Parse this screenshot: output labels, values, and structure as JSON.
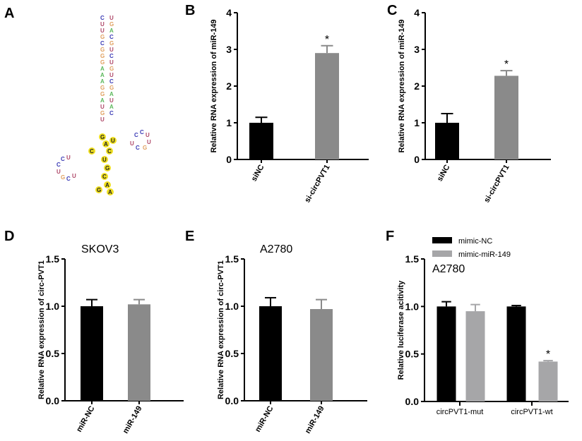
{
  "panels": {
    "a": "A",
    "b": "B",
    "c": "C",
    "d": "D",
    "e": "E",
    "f": "F"
  },
  "colors": {
    "black": "#000000",
    "gray": "#8a8a8a",
    "lightgray": "#a6a6a8"
  },
  "structure": {
    "type": "rna-secondary-structure",
    "label": "A"
  },
  "chart_data": [
    {
      "id": "B",
      "type": "bar",
      "categories": [
        "siNC",
        "si-circPVT1"
      ],
      "values": [
        1.0,
        2.9
      ],
      "errors": [
        1.15,
        3.1
      ],
      "colors": [
        "#000000",
        "#8a8a8a"
      ],
      "ylabel": "Relative RNA expression of miR-149",
      "ylim": [
        0,
        4
      ],
      "yticks": [
        "0",
        "1",
        "2",
        "3",
        "4"
      ],
      "annotations": [
        "",
        "*"
      ],
      "rotate_x": true,
      "title": ""
    },
    {
      "id": "C",
      "type": "bar",
      "categories": [
        "siNC",
        "si-circPVT1"
      ],
      "values": [
        1.0,
        2.28
      ],
      "errors": [
        1.25,
        2.42
      ],
      "colors": [
        "#000000",
        "#8a8a8a"
      ],
      "ylabel": "Relative RNA expression of miR-149",
      "ylim": [
        0,
        4
      ],
      "yticks": [
        "0",
        "1",
        "2",
        "3",
        "4"
      ],
      "annotations": [
        "",
        "*"
      ],
      "rotate_x": true,
      "title": ""
    },
    {
      "id": "D",
      "type": "bar",
      "categories": [
        "miR-NC",
        "miR-149"
      ],
      "values": [
        1.0,
        1.02
      ],
      "errors": [
        1.07,
        1.07
      ],
      "colors": [
        "#000000",
        "#8a8a8a"
      ],
      "ylabel": "Relative RNA expression of circ-PVT1",
      "ylim": [
        0,
        1.5
      ],
      "yticks": [
        "0.0",
        "0.5",
        "1.0",
        "1.5"
      ],
      "annotations": [
        "",
        ""
      ],
      "rotate_x": true,
      "title": "SKOV3"
    },
    {
      "id": "E",
      "type": "bar",
      "categories": [
        "miR-NC",
        "miR-149"
      ],
      "values": [
        1.0,
        0.97
      ],
      "errors": [
        1.09,
        1.07
      ],
      "colors": [
        "#000000",
        "#8a8a8a"
      ],
      "ylabel": "Relative RNA expression of circ-PVT1",
      "ylim": [
        0,
        1.5
      ],
      "yticks": [
        "0.0",
        "0.5",
        "1.0",
        "1.5"
      ],
      "annotations": [
        "",
        ""
      ],
      "rotate_x": true,
      "title": "A2780"
    },
    {
      "id": "F",
      "type": "bar",
      "categories": [
        "circPVT1-mut",
        "circPVT1-wt"
      ],
      "series": [
        {
          "name": "mimic-NC",
          "color": "#000000",
          "values": [
            1.0,
            1.0
          ],
          "errors": [
            1.05,
            1.01
          ]
        },
        {
          "name": "mimic-miR-149",
          "color": "#a6a6a8",
          "values": [
            0.95,
            0.42
          ],
          "errors": [
            1.02,
            0.43
          ]
        }
      ],
      "annotations": [
        [
          "",
          ""
        ],
        [
          "",
          "*"
        ]
      ],
      "ylabel": "Relative luciferase acitivity",
      "ylim": [
        0,
        1.5
      ],
      "yticks": [
        "0.0",
        "0.5",
        "1.0",
        "1.5"
      ],
      "title": "A2780",
      "legend": "top-left"
    }
  ]
}
